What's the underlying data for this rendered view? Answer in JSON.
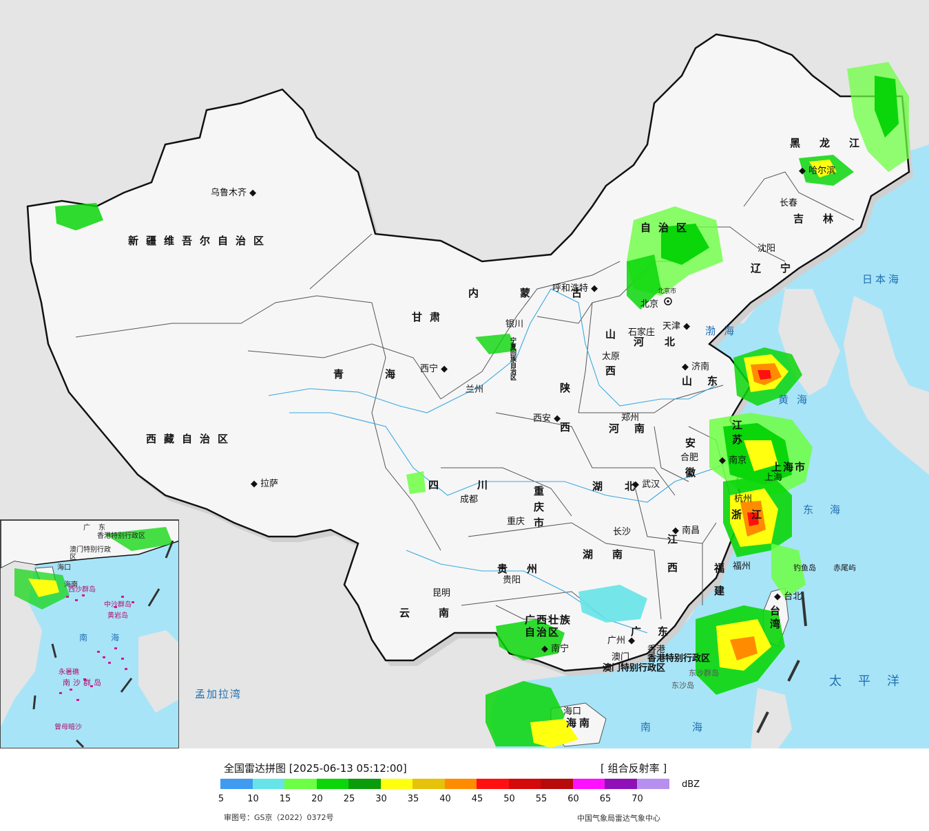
{
  "legend": {
    "title": "全国雷达拼图 [2025-06-13 05:12:00]",
    "product": "[ 组合反射率 ]",
    "unit": "dBZ",
    "approval": "审图号：GS京（2022）0372号",
    "source": "中国气象局雷达气象中心",
    "ticks": [
      "5",
      "10",
      "15",
      "20",
      "25",
      "30",
      "35",
      "40",
      "45",
      "50",
      "55",
      "60",
      "65",
      "70"
    ],
    "colors": [
      "#3f9bf0",
      "#66e4e8",
      "#6dff44",
      "#0ad60a",
      "#0a9c0a",
      "#ffff10",
      "#e6c20a",
      "#ff8c00",
      "#ff1010",
      "#d40a0a",
      "#b80a0a",
      "#ff10ff",
      "#9010b8",
      "#b690ee"
    ]
  },
  "map": {
    "provinces": [
      "新疆维吾尔自治区",
      "西藏自治区",
      "青海",
      "甘肃",
      "内蒙古",
      "自治区",
      "黑龙江",
      "吉林",
      "辽宁",
      "河北",
      "山西",
      "山东",
      "河南",
      "陕西",
      "四川",
      "重庆市",
      "湖北",
      "安徽",
      "江苏",
      "上海市",
      "浙江",
      "江西",
      "湖南",
      "贵州",
      "云南",
      "福建",
      "广西壮族自治区",
      "广东",
      "香港特别行政区",
      "澳门特别行政区",
      "台湾",
      "海南",
      "宁夏回族自治区"
    ],
    "cities": [
      "乌鲁木齐",
      "拉萨",
      "西宁",
      "兰州",
      "银川",
      "呼和浩特",
      "北京市",
      "北京",
      "天津",
      "石家庄",
      "太原",
      "济南",
      "郑州",
      "西安",
      "成都",
      "重庆",
      "武汉",
      "合肥",
      "南京",
      "上海",
      "杭州",
      "南昌",
      "长沙",
      "福州",
      "台北",
      "贵阳",
      "昆明",
      "南宁",
      "广州",
      "香港",
      "澳门",
      "海口",
      "哈尔滨",
      "长春",
      "沈阳"
    ],
    "seas": [
      "渤海",
      "黄海",
      "东海",
      "南海",
      "日本海",
      "太平洋",
      "孟加拉湾"
    ],
    "islands": [
      "钓鱼岛",
      "赤尾屿",
      "东沙群岛",
      "东沙岛"
    ]
  },
  "inset": {
    "labels": [
      "南海",
      "中沙群岛",
      "黄岩岛",
      "永暑礁",
      "南沙群岛",
      "曾母暗沙",
      "西沙群岛",
      "广东",
      "香港特别行政区",
      "澳门特别行政区",
      "海口",
      "海南"
    ]
  }
}
